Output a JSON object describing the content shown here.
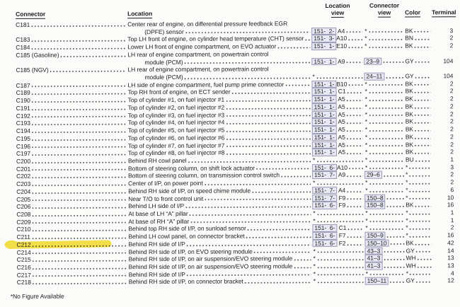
{
  "page": {
    "footnote": "*No Figure Available"
  },
  "colors": {
    "highlight": "#f0d829",
    "ref_box_bg": "#e9e9f5",
    "ref_box_border": "#9a9ab6"
  },
  "table": {
    "headers": {
      "connector": "Connector",
      "location": "Location",
      "location_view": {
        "line1": "Location",
        "line2": "view"
      },
      "connector_view": {
        "line1": "Connector",
        "line2": "view"
      },
      "color": "Color",
      "terminal": "Terminal"
    },
    "rows": [
      {
        "connector": "C181",
        "location": [
          "Center rear of engine, on differential pressure feedback EGR",
          "(DPFE) sensor"
        ],
        "location_view": [
          "151-  2-",
          " A4"
        ],
        "connector_view": "*",
        "color": "BK",
        "terminal": "3"
      },
      {
        "connector": "C183",
        "location": [
          "Top LH front of engine, on cylinder head temperature (CHT) sensor"
        ],
        "location_view": [
          "151-  3-",
          "A10"
        ],
        "connector_view": "*",
        "color": "BN",
        "terminal": "2"
      },
      {
        "connector": "C184",
        "location": [
          "Lower LH front of engine compartment, on EVO actuator"
        ],
        "location_view": [
          "151-  1-",
          "E10"
        ],
        "connector_view": "*",
        "color": "BK",
        "terminal": "2"
      },
      {
        "connector": "C185 (Gasoline)",
        "location": [
          "LH rear of engine compartment, on powertrain control",
          "module (PCM)"
        ],
        "location_view": [
          "151-  1-",
          " A9"
        ],
        "connector_view": "23–9",
        "color": "GY",
        "terminal": "104"
      },
      {
        "connector": "C185 (NGV)",
        "location": [
          "LH rear of engine compartment, on powertrain control",
          "module (PCM)"
        ],
        "location_view": "*",
        "connector_view": "24–11",
        "color": "GY",
        "terminal": "104"
      },
      {
        "connector": "C187",
        "location": [
          "LH side of engine compartment, fuel pump prime connector"
        ],
        "location_view": [
          "151-  1-",
          "B10"
        ],
        "connector_view": "*",
        "color": "BK",
        "terminal": "2"
      },
      {
        "connector": "C189",
        "location": [
          "Top RH front of engine, on ECT sender"
        ],
        "location_view": [
          "151-  1-",
          " C1"
        ],
        "connector_view": "*",
        "color": "BK",
        "terminal": "2"
      },
      {
        "connector": "C190",
        "location": [
          "Top of cylinder #1, on fuel injector #1"
        ],
        "location_view": [
          "151-  1-",
          " A5"
        ],
        "connector_view": "*",
        "color": "BK",
        "terminal": "2"
      },
      {
        "connector": "C191",
        "location": [
          "Top of cylinder #2, on fuel injector #2"
        ],
        "location_view": [
          "151-  1-",
          " A5"
        ],
        "connector_view": "*",
        "color": "BK",
        "terminal": "2"
      },
      {
        "connector": "C192",
        "location": [
          "Top of cylinder #3, on fuel injector #3"
        ],
        "location_view": [
          "151-  1-",
          " A5"
        ],
        "connector_view": "*",
        "color": "BK",
        "terminal": "2"
      },
      {
        "connector": "C193",
        "location": [
          "Top of cylinder #4, on fuel injector #4"
        ],
        "location_view": [
          "151-  1-",
          " A5"
        ],
        "connector_view": "*",
        "color": "BK",
        "terminal": "2"
      },
      {
        "connector": "C194",
        "location": [
          "Top of cylinder #5, on fuel injector #5"
        ],
        "location_view": [
          "151-  1-",
          " A5"
        ],
        "connector_view": "*",
        "color": "BK",
        "terminal": "2"
      },
      {
        "connector": "C195",
        "location": [
          "Top of cylinder #6, on fuel injector #6"
        ],
        "location_view": [
          "151-  1-",
          " A5"
        ],
        "connector_view": "*",
        "color": "BK",
        "terminal": "2"
      },
      {
        "connector": "C196",
        "location": [
          "Top of cylinder #7, on fuel injector #7"
        ],
        "location_view": [
          "151-  1-",
          " A5"
        ],
        "connector_view": "*",
        "color": "BK",
        "terminal": "2"
      },
      {
        "connector": "C197",
        "location": [
          "Top of cylinder #8, on fuel injector #8"
        ],
        "location_view": [
          "151-  1-",
          " A5"
        ],
        "connector_view": "*",
        "color": "BK",
        "terminal": "2"
      },
      {
        "connector": "C200",
        "location": [
          "Behind RH cowl panel"
        ],
        "location_view": "*",
        "connector_view": "*",
        "color": "BU",
        "terminal": "1"
      },
      {
        "connector": "C201",
        "location": [
          "Bottom of steering column, on shift lock actuator"
        ],
        "location_view": [
          "151-  6-",
          "A10"
        ],
        "connector_view": "*",
        "color": "*",
        "terminal": "3"
      },
      {
        "connector": "C202",
        "location": [
          "Bottom of steering column, on transmission control switch"
        ],
        "location_view": [
          "151-  7-",
          " A9"
        ],
        "connector_view": "29–6",
        "color": "*",
        "terminal": "2"
      },
      {
        "connector": "C203",
        "location": [
          "Center of I/P, on power point"
        ],
        "location_view": "*",
        "connector_view": "*",
        "color": "*",
        "terminal": "2"
      },
      {
        "connector": "C204",
        "location": [
          "Behind RH side of I/P, on speed chime module"
        ],
        "location_view": [
          "151-  7-",
          " A4"
        ],
        "connector_view": "*",
        "color": "*",
        "terminal": "6"
      },
      {
        "connector": "C205",
        "location": [
          "Near T/O to front control unit"
        ],
        "location_view": [
          "151-  7-",
          " F9"
        ],
        "connector_view": "150–8",
        "color": "*",
        "terminal": "10"
      },
      {
        "connector": "C206",
        "location": [
          "Behind LH side of I/P"
        ],
        "location_view": [
          "151-  6-",
          " F9"
        ],
        "connector_view": "150–8",
        "color": "BK",
        "terminal": "16"
      },
      {
        "connector": "C208",
        "location": [
          "At base of LH “A” pillar"
        ],
        "location_view": "*",
        "connector_view": "*",
        "color": "*",
        "terminal": "1"
      },
      {
        "connector": "C209",
        "location": [
          "At base of RH “A” pillar"
        ],
        "location_view": "*",
        "connector_view": "*",
        "color": "*",
        "terminal": "1"
      },
      {
        "connector": "C210",
        "location": [
          "Behind top RH side of I/P, on sunload sensor"
        ],
        "location_view": [
          "151-  6-",
          " C1"
        ],
        "connector_view": "*",
        "color": "*",
        "terminal": "2"
      },
      {
        "connector": "C211",
        "location": [
          "Behind LH cowl panel, on connector bracket"
        ],
        "location_view": [
          "151-  6-",
          " F7"
        ],
        "connector_view": "150–9",
        "color": "*",
        "terminal": "16"
      },
      {
        "connector": "C212",
        "location": [
          "Behind RH side of I/P"
        ],
        "location_view": [
          "151-  6-",
          " F2"
        ],
        "connector_view": "150–10",
        "color": "BK",
        "terminal": "42",
        "highlighted": true
      },
      {
        "connector": "C214",
        "location": [
          "Behind RH side of I/P, on EVO steering module"
        ],
        "location_view": "*",
        "connector_view": "43–3",
        "color": "GY",
        "terminal": "14"
      },
      {
        "connector": "C215",
        "location": [
          "Behind RH side of I/P, on air suspension/EVO steering module"
        ],
        "location_view": "*",
        "connector_view": "41–3",
        "color": "WH",
        "terminal": "13"
      },
      {
        "connector": "C216",
        "location": [
          "Behind RH side of I/P, on air suspension/EVO steering module"
        ],
        "location_view": "*",
        "connector_view": "41–3",
        "color": "WH",
        "terminal": "13"
      },
      {
        "connector": "C217",
        "location": [
          "Behind RH side of I/P"
        ],
        "location_view": "*",
        "connector_view": "*",
        "color": "*",
        "terminal": "4"
      },
      {
        "connector": "C218",
        "location": [
          "Behind RH side of I/P, on connector bracket"
        ],
        "location_view": "*",
        "connector_view": "150–11",
        "color": "GY",
        "terminal": "12"
      }
    ]
  }
}
